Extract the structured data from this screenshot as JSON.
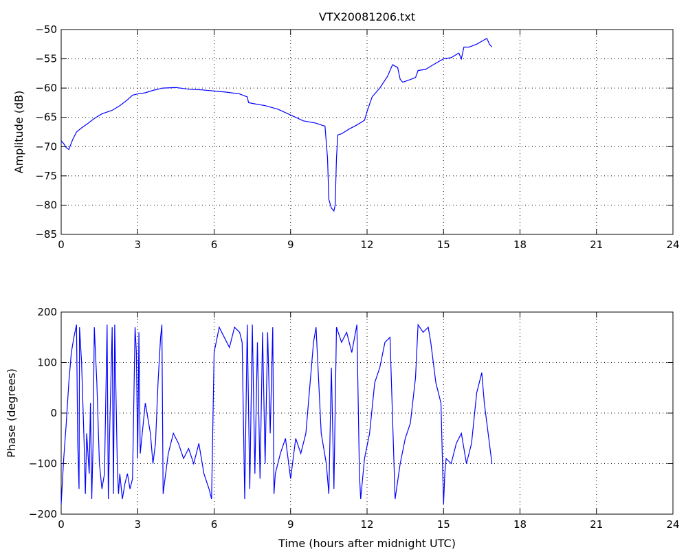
{
  "figure": {
    "title": "VTX20081206.txt"
  },
  "chart_data": [
    {
      "type": "line",
      "title": "VTX20081206.txt",
      "xlabel": "",
      "ylabel": "Amplitude (dB)",
      "xlim": [
        0,
        24
      ],
      "ylim": [
        -85,
        -50
      ],
      "xticks": [
        0,
        3,
        6,
        9,
        12,
        15,
        18,
        21,
        24
      ],
      "yticks": [
        -85,
        -80,
        -75,
        -70,
        -65,
        -60,
        -55,
        -50
      ],
      "grid": true,
      "series": [
        {
          "color": "#0000ff",
          "x": [
            0,
            0.1,
            0.2,
            0.3,
            0.45,
            0.6,
            0.8,
            1.0,
            1.3,
            1.6,
            2.0,
            2.3,
            2.6,
            2.8,
            3.0,
            3.3,
            3.6,
            4.0,
            4.5,
            5.0,
            5.5,
            6.0,
            6.5,
            7.0,
            7.3,
            7.35,
            7.6,
            8.0,
            8.5,
            9.0,
            9.5,
            10.0,
            10.2,
            10.35,
            10.45,
            10.5,
            10.6,
            10.7,
            10.75,
            10.8,
            10.85,
            11.0,
            11.3,
            11.6,
            11.9,
            12.0,
            12.2,
            12.5,
            12.8,
            13.0,
            13.2,
            13.3,
            13.4,
            13.6,
            13.9,
            14.0,
            14.3,
            14.6,
            15.0,
            15.3,
            15.6,
            15.7,
            15.8,
            16.0,
            16.3,
            16.5,
            16.7,
            16.8,
            16.9
          ],
          "y": [
            -69,
            -69.5,
            -70.2,
            -70.5,
            -68.8,
            -67.5,
            -66.8,
            -66.2,
            -65.2,
            -64.4,
            -63.8,
            -63.0,
            -62.0,
            -61.2,
            -61.0,
            -60.8,
            -60.4,
            -60.0,
            -59.9,
            -60.2,
            -60.3,
            -60.5,
            -60.7,
            -61.0,
            -61.5,
            -62.5,
            -62.7,
            -63.0,
            -63.6,
            -64.6,
            -65.6,
            -66.0,
            -66.3,
            -66.5,
            -72,
            -79,
            -80.5,
            -81.0,
            -80.0,
            -72,
            -68,
            -67.8,
            -67.0,
            -66.3,
            -65.5,
            -64,
            -61.5,
            -60.0,
            -58.0,
            -56.0,
            -56.5,
            -58.5,
            -59.0,
            -58.7,
            -58.2,
            -57.0,
            -56.8,
            -56.0,
            -55.0,
            -54.8,
            -54.0,
            -55.0,
            -53.0,
            -53.0,
            -52.5,
            -52.0,
            -51.5,
            -52.5,
            -53.0
          ]
        }
      ]
    },
    {
      "type": "line",
      "title": "",
      "xlabel": "Time (hours after midnight UTC)",
      "ylabel": "Phase (degrees)",
      "xlim": [
        0,
        24
      ],
      "ylim": [
        -200,
        200
      ],
      "xticks": [
        0,
        3,
        6,
        9,
        12,
        15,
        18,
        21,
        24
      ],
      "yticks": [
        -200,
        -100,
        0,
        100,
        200
      ],
      "grid": true,
      "series": [
        {
          "color": "#0000ff",
          "x": [
            0,
            0.1,
            0.2,
            0.3,
            0.4,
            0.5,
            0.6,
            0.65,
            0.7,
            0.72,
            0.8,
            0.9,
            0.95,
            1.0,
            1.1,
            1.15,
            1.2,
            1.25,
            1.3,
            1.4,
            1.5,
            1.6,
            1.7,
            1.8,
            1.85,
            1.9,
            2.0,
            2.05,
            2.1,
            2.2,
            2.25,
            2.3,
            2.4,
            2.5,
            2.6,
            2.7,
            2.8,
            2.9,
            2.95,
            3.0,
            3.05,
            3.1,
            3.2,
            3.3,
            3.4,
            3.5,
            3.6,
            3.7,
            3.8,
            3.9,
            3.95,
            4.0,
            4.1,
            4.2,
            4.4,
            4.6,
            4.8,
            5.0,
            5.2,
            5.4,
            5.6,
            5.8,
            5.9,
            6.0,
            6.2,
            6.4,
            6.6,
            6.8,
            7.0,
            7.1,
            7.2,
            7.3,
            7.4,
            7.5,
            7.6,
            7.7,
            7.8,
            7.9,
            8.0,
            8.1,
            8.2,
            8.3,
            8.35,
            8.4,
            8.6,
            8.8,
            9.0,
            9.2,
            9.4,
            9.6,
            9.8,
            9.9,
            10.0,
            10.2,
            10.4,
            10.5,
            10.6,
            10.7,
            10.8,
            11.0,
            11.2,
            11.4,
            11.6,
            11.7,
            11.75,
            11.9,
            12.1,
            12.3,
            12.5,
            12.7,
            12.9,
            13.1,
            13.3,
            13.5,
            13.7,
            13.9,
            14.0,
            14.2,
            14.4,
            14.5,
            14.7,
            14.9,
            15.0,
            15.05,
            15.1,
            15.3,
            15.5,
            15.7,
            15.9,
            16.1,
            16.3,
            16.5,
            16.6,
            16.7,
            16.8,
            16.9
          ],
          "y": [
            -180,
            -90,
            -20,
            60,
            120,
            150,
            175,
            -60,
            -150,
            170,
            100,
            -60,
            -160,
            -40,
            -120,
            20,
            -170,
            -60,
            170,
            60,
            -100,
            -150,
            -120,
            175,
            -170,
            -40,
            170,
            -160,
            175,
            -100,
            -160,
            -120,
            -170,
            -140,
            -120,
            -150,
            -130,
            170,
            120,
            -90,
            160,
            -80,
            -30,
            20,
            -10,
            -40,
            -100,
            -60,
            60,
            150,
            175,
            -160,
            -120,
            -80,
            -40,
            -60,
            -90,
            -70,
            -100,
            -60,
            -120,
            -150,
            -170,
            120,
            170,
            150,
            130,
            170,
            160,
            140,
            -170,
            175,
            -150,
            175,
            -120,
            140,
            -130,
            160,
            -100,
            160,
            -40,
            170,
            -160,
            -120,
            -80,
            -50,
            -130,
            -50,
            -80,
            -40,
            80,
            140,
            170,
            -40,
            -100,
            -160,
            90,
            -150,
            170,
            140,
            160,
            120,
            175,
            -120,
            -170,
            -90,
            -40,
            60,
            90,
            140,
            150,
            -170,
            -100,
            -50,
            -20,
            70,
            175,
            160,
            170,
            140,
            60,
            20,
            -180,
            -120,
            -90,
            -100,
            -60,
            -40,
            -100,
            -60,
            40,
            80,
            20,
            -20,
            -60,
            -100
          ]
        }
      ]
    }
  ]
}
